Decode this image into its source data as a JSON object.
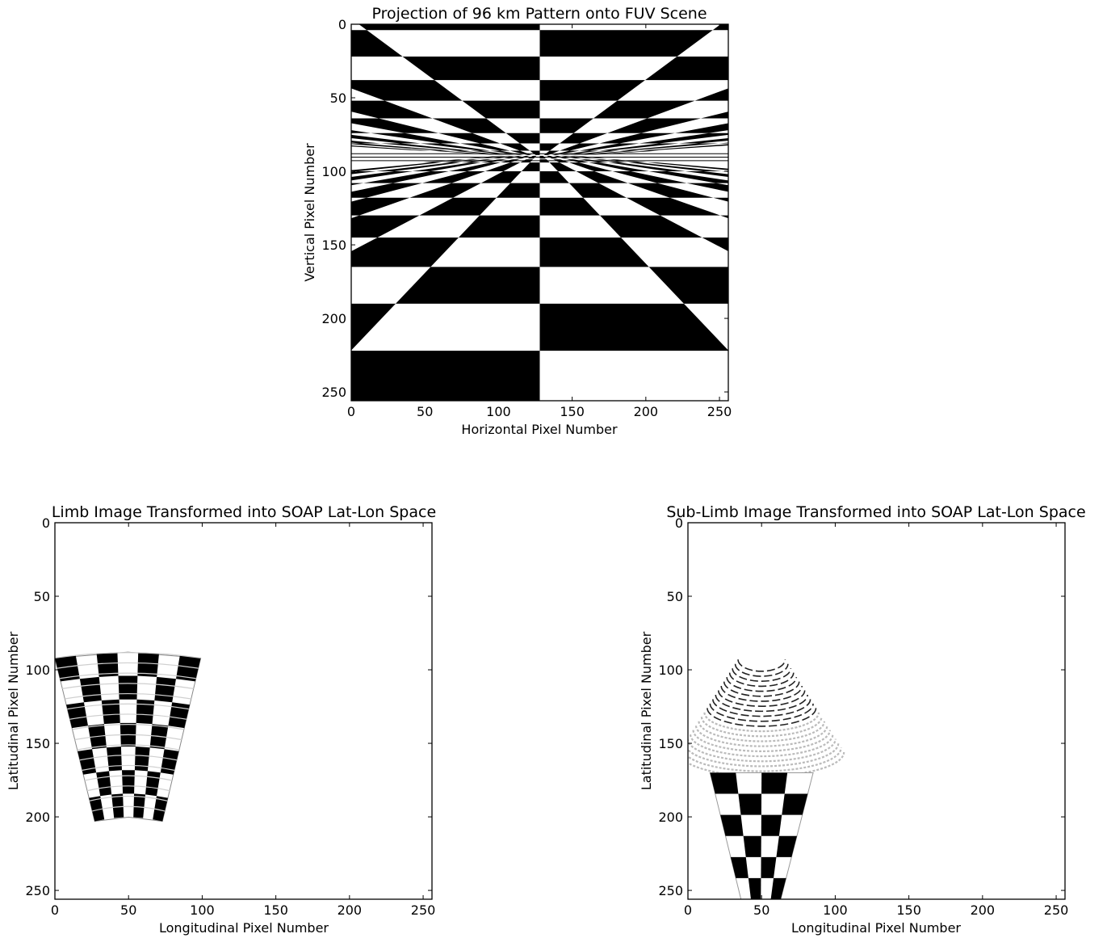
{
  "chart_data": [
    {
      "type": "heatmap",
      "title": "Projection of 96 km Pattern onto FUV Scene",
      "xlabel": "Horizontal Pixel Number",
      "ylabel": "Vertical Pixel Number",
      "xlim": [
        0,
        256
      ],
      "ylim": [
        256,
        0
      ],
      "xticks": [
        0,
        50,
        100,
        150,
        200,
        250
      ],
      "yticks": [
        0,
        50,
        100,
        150,
        200,
        250
      ],
      "colormap": "binary (black / white)",
      "description_of_content": "checkerboard",
      "horizon_row": 89,
      "center_column": 128
    },
    {
      "type": "heatmap",
      "title": "Limb Image Transformed into SOAP Lat-Lon Space",
      "xlabel": "Longitudinal Pixel Number",
      "ylabel": "Latitudinal Pixel Number",
      "xlim": [
        0,
        256
      ],
      "ylim": [
        256,
        0
      ],
      "xticks": [
        0,
        50,
        100,
        150,
        200,
        250
      ],
      "yticks": [
        0,
        50,
        100,
        150,
        200,
        250
      ],
      "region": {
        "top_left": [
          0,
          92
        ],
        "top_right": [
          99,
          92
        ],
        "bottom_left": [
          27,
          203
        ],
        "bottom_right": [
          73,
          203
        ]
      },
      "grid_rows": 7,
      "grid_cols": 7
    },
    {
      "type": "heatmap",
      "title": "Sub-Limb Image Transformed into SOAP Lat-Lon Space",
      "xlabel": "Longitudinal Pixel Number",
      "ylabel": "Latitudinal Pixel Number",
      "xlim": [
        0,
        256
      ],
      "ylim": [
        256,
        0
      ],
      "xticks": [
        0,
        50,
        100,
        150,
        200,
        250
      ],
      "yticks": [
        0,
        50,
        100,
        150,
        200,
        250
      ],
      "arc_center_longitude": 50,
      "arc_rows": [
        93,
        169
      ],
      "checker_rows": [
        170,
        256
      ],
      "region": {
        "top_left": [
          15,
          170
        ],
        "top_right": [
          85,
          170
        ],
        "bottom_left": [
          36,
          256
        ],
        "bottom_right": [
          63,
          256
        ]
      }
    }
  ]
}
